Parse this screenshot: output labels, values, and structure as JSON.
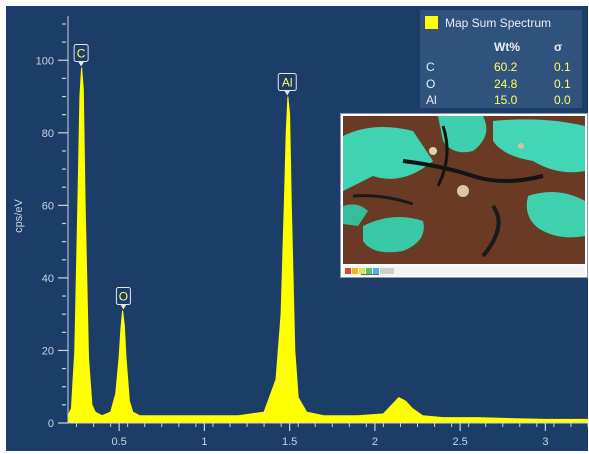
{
  "chart_data": {
    "type": "line",
    "title": "",
    "xlabel": "",
    "ylabel": "cps/eV",
    "xlim": [
      0.2,
      3.25
    ],
    "ylim": [
      0,
      110
    ],
    "x_ticks": [
      "0.5",
      "1",
      "1.5",
      "2",
      "2.5",
      "3"
    ],
    "x_tick_values": [
      0.5,
      1,
      1.5,
      2,
      2.5,
      3
    ],
    "y_ticks": [
      "0",
      "20",
      "40",
      "60",
      "80",
      "100"
    ],
    "y_tick_values": [
      0,
      20,
      40,
      60,
      80,
      100
    ],
    "series": [
      {
        "name": "Map Sum Spectrum",
        "color": "#ffff00",
        "x": [
          0.2,
          0.22,
          0.24,
          0.26,
          0.27,
          0.28,
          0.29,
          0.3,
          0.32,
          0.34,
          0.36,
          0.4,
          0.45,
          0.48,
          0.5,
          0.51,
          0.52,
          0.53,
          0.54,
          0.56,
          0.58,
          0.62,
          0.8,
          1.0,
          1.2,
          1.35,
          1.42,
          1.45,
          1.47,
          1.48,
          1.49,
          1.5,
          1.51,
          1.53,
          1.55,
          1.6,
          1.7,
          1.9,
          2.05,
          2.1,
          2.14,
          2.18,
          2.22,
          2.28,
          2.4,
          2.6,
          2.8,
          3.0,
          3.25
        ],
        "y": [
          2,
          4,
          20,
          65,
          90,
          98,
          92,
          62,
          18,
          5,
          3,
          2,
          3,
          8,
          18,
          26,
          31,
          27,
          18,
          6,
          3,
          2,
          2,
          2,
          2,
          3,
          12,
          30,
          62,
          80,
          90,
          85,
          60,
          20,
          7,
          3,
          2,
          2,
          2.5,
          5,
          7,
          6,
          4,
          2,
          1.5,
          1.5,
          1.2,
          1,
          1
        ]
      }
    ],
    "peak_labels": [
      {
        "label": "C",
        "x": 0.277,
        "y": 98
      },
      {
        "label": "O",
        "x": 0.525,
        "y": 31
      },
      {
        "label": "Al",
        "x": 1.486,
        "y": 90
      }
    ],
    "grid": false,
    "legend_position": "top-right"
  },
  "legend": {
    "title": "Map Sum Spectrum",
    "swatch_color": "#ffff00",
    "col_wt": "Wt%",
    "col_sigma": "σ",
    "rows": [
      {
        "element": "C",
        "wt": "60.2",
        "sigma": "0.1"
      },
      {
        "element": "O",
        "wt": "24.8",
        "sigma": "0.1"
      },
      {
        "element": "Al",
        "wt": "15.0",
        "sigma": "0.0"
      }
    ]
  },
  "colors": {
    "background": "#1c3d68",
    "axis": "#c8d4e3",
    "spectrum": "#ffff00",
    "label_text": "#ffff66"
  },
  "inset": {
    "description_icon": "map-thumbnail-icon"
  }
}
